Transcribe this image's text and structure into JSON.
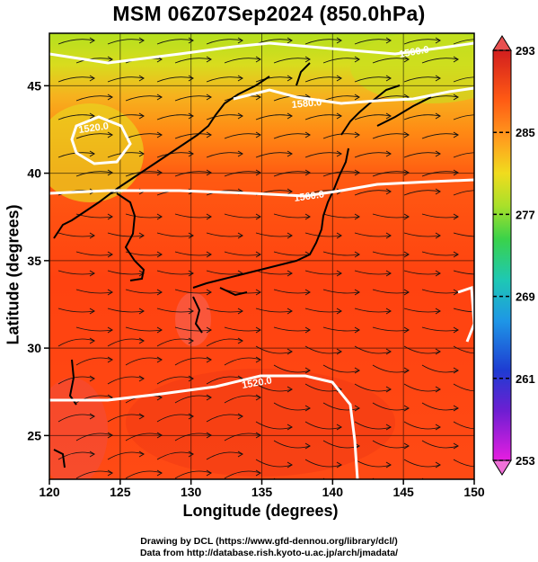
{
  "title": "MSM 06Z07Sep2024 (850.0hPa)",
  "x_axis": {
    "label": "Longitude (degrees)",
    "ticks": [
      "120",
      "125",
      "130",
      "135",
      "140",
      "145",
      "150"
    ]
  },
  "y_axis": {
    "label": "Latitude  (degrees)",
    "ticks": [
      "25",
      "30",
      "35",
      "40",
      "45"
    ]
  },
  "colorbar": {
    "ticks": [
      "293",
      "285",
      "277",
      "269",
      "261",
      "253"
    ],
    "colors": [
      "#c81e1e",
      "#ff4a14",
      "#ff9a1e",
      "#e8d21e",
      "#6ad83a",
      "#1ec8a0",
      "#1e96e6",
      "#1e32c8",
      "#7a1ed2",
      "#e81edc"
    ]
  },
  "contours": [
    {
      "label": "1520.0"
    },
    {
      "label": "1560.0"
    },
    {
      "label": "1580.0"
    },
    {
      "label": "1560.0"
    },
    {
      "label": "1520.0"
    }
  ],
  "credits": {
    "line1": "Drawing by DCL (https://www.gfd-dennou.org/library/dcl/)",
    "line2": "Data from http://database.rish.kyoto-u.ac.jp/arch/jmadata/"
  }
}
